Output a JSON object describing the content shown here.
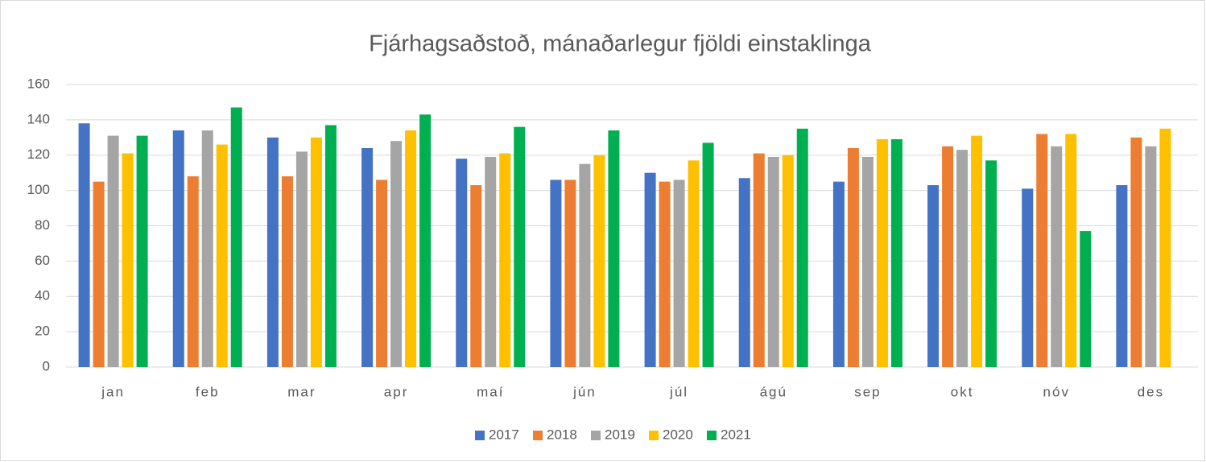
{
  "chart_data": {
    "type": "bar",
    "title": "Fjárhagsaðstoð, mánaðarlegur fjöldi einstaklinga",
    "categories": [
      "jan",
      "feb",
      "mar",
      "apr",
      "maí",
      "jún",
      "júl",
      "ágú",
      "sep",
      "okt",
      "nóv",
      "des"
    ],
    "series": [
      {
        "name": "2017",
        "color": "#4472c4",
        "values": [
          138,
          134,
          130,
          124,
          118,
          106,
          110,
          107,
          105,
          103,
          101,
          103
        ]
      },
      {
        "name": "2018",
        "color": "#ed7d31",
        "values": [
          105,
          108,
          108,
          106,
          103,
          106,
          105,
          121,
          124,
          125,
          132,
          130
        ]
      },
      {
        "name": "2019",
        "color": "#a5a5a5",
        "values": [
          131,
          134,
          122,
          128,
          119,
          115,
          106,
          119,
          119,
          123,
          125,
          125
        ]
      },
      {
        "name": "2020",
        "color": "#ffc000",
        "values": [
          121,
          126,
          130,
          134,
          121,
          120,
          117,
          120,
          129,
          131,
          132,
          135
        ]
      },
      {
        "name": "2021",
        "color": "#00b050",
        "values": [
          131,
          147,
          137,
          143,
          136,
          134,
          127,
          135,
          129,
          117,
          77,
          null
        ]
      }
    ],
    "ylim": [
      0,
      160
    ],
    "yticks": [
      0,
      20,
      40,
      60,
      80,
      100,
      120,
      140,
      160
    ],
    "grid": true,
    "legend": "bottom"
  }
}
